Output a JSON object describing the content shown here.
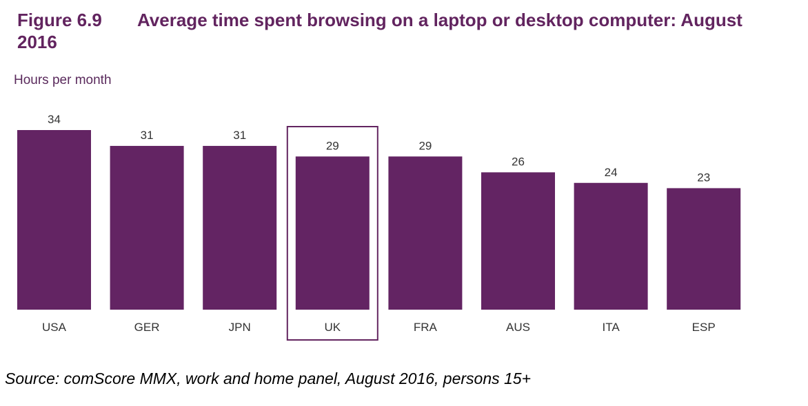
{
  "figure": {
    "number": "Figure 6.9",
    "title_line1": "Average time spent browsing on a laptop or desktop computer: August",
    "title_line2": "2016"
  },
  "y_unit_label": "Hours per month",
  "source": "Source: comScore MMX, work and home panel, August 2016, persons 15+",
  "colors": {
    "bar": "#632463",
    "title": "#62245f",
    "highlight_border": "#62245f"
  },
  "chart_data": {
    "type": "bar",
    "categories": [
      "USA",
      "GER",
      "JPN",
      "UK",
      "FRA",
      "AUS",
      "ITA",
      "ESP"
    ],
    "values": [
      34,
      31,
      31,
      29,
      29,
      26,
      24,
      23
    ],
    "highlighted_category": "UK",
    "ylabel": "Hours per month",
    "ylim": [
      0,
      34
    ],
    "grid": false,
    "legend": "none"
  }
}
